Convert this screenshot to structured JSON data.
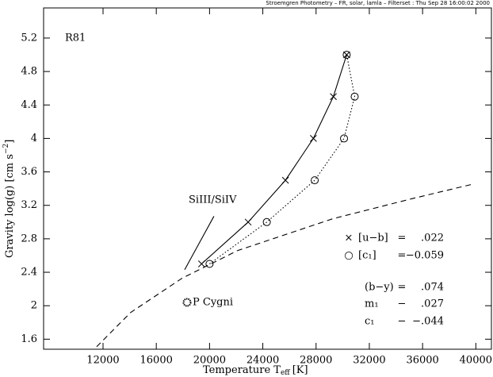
{
  "chart_data": {
    "type": "line",
    "header": "Stroemgren Photometry – FR, solar, lamla – Filterset : Thu Sep 28 16:00:02 2000",
    "label": "R81",
    "xlabel": "Temperature T",
    "xlabel_sub": "eff",
    "xlabel_unit": "[K]",
    "ylabel": "Gravity  log(g) [cm s",
    "ylabel_sup": "−2",
    "ylabel_end": "]",
    "xlim": [
      7536,
      41170
    ],
    "ylim": [
      1.48,
      5.56
    ],
    "xticks": [
      12000,
      16000,
      20000,
      24000,
      28000,
      32000,
      36000,
      40000
    ],
    "yticks": [
      1.6,
      2,
      2.4,
      2.8,
      3.2,
      3.6,
      4,
      4.4,
      4.8,
      5.2
    ],
    "series": [
      {
        "color": "#000",
        "linestyle": "solid",
        "marker": "x",
        "x": [
          19400,
          22900,
          25700,
          27800,
          29300,
          30300
        ],
        "values": [
          2.5,
          3.0,
          3.5,
          4.0,
          4.5,
          5.0
        ]
      },
      {
        "color": "#000",
        "linestyle": "dotted",
        "marker": "circle",
        "x": [
          20000,
          24300,
          27900,
          30100,
          30900,
          30300
        ],
        "values": [
          2.5,
          3.0,
          3.5,
          4.0,
          4.5,
          5.0
        ]
      },
      {
        "color": "#000",
        "linestyle": "dashed",
        "marker": "none",
        "x": [
          11520,
          14080,
          17950,
          22120,
          29260,
          35210,
          39680
        ],
        "values": [
          1.51,
          1.92,
          2.33,
          2.66,
          3.04,
          3.28,
          3.45
        ]
      },
      {
        "color": "#000",
        "linestyle": "solid",
        "marker": "none",
        "x": [
          18130,
          20330
        ],
        "values": [
          2.43,
          3.07
        ]
      },
      {
        "color": "#000",
        "linestyle": "none",
        "marker": "star",
        "x": [
          18310
        ],
        "values": [
          2.04
        ]
      }
    ],
    "annotations": {
      "line_label": "SiIII/SiIV",
      "star_label": "P Cygni",
      "legend": [
        {
          "symbol": "×",
          "name": "[u−b]",
          "sep": "=",
          "value": ".022"
        },
        {
          "symbol": "○",
          "name": "[c₁]",
          "sep": "=",
          "value": "−0.059"
        },
        {
          "symbol": "",
          "name": "(b−y)",
          "sep": "=",
          "value": ".074"
        },
        {
          "symbol": "",
          "name": "m₁",
          "sep": "−",
          "value": ".027"
        },
        {
          "symbol": "",
          "name": "c₁",
          "sep": "−",
          "value": "−.044"
        }
      ]
    }
  }
}
